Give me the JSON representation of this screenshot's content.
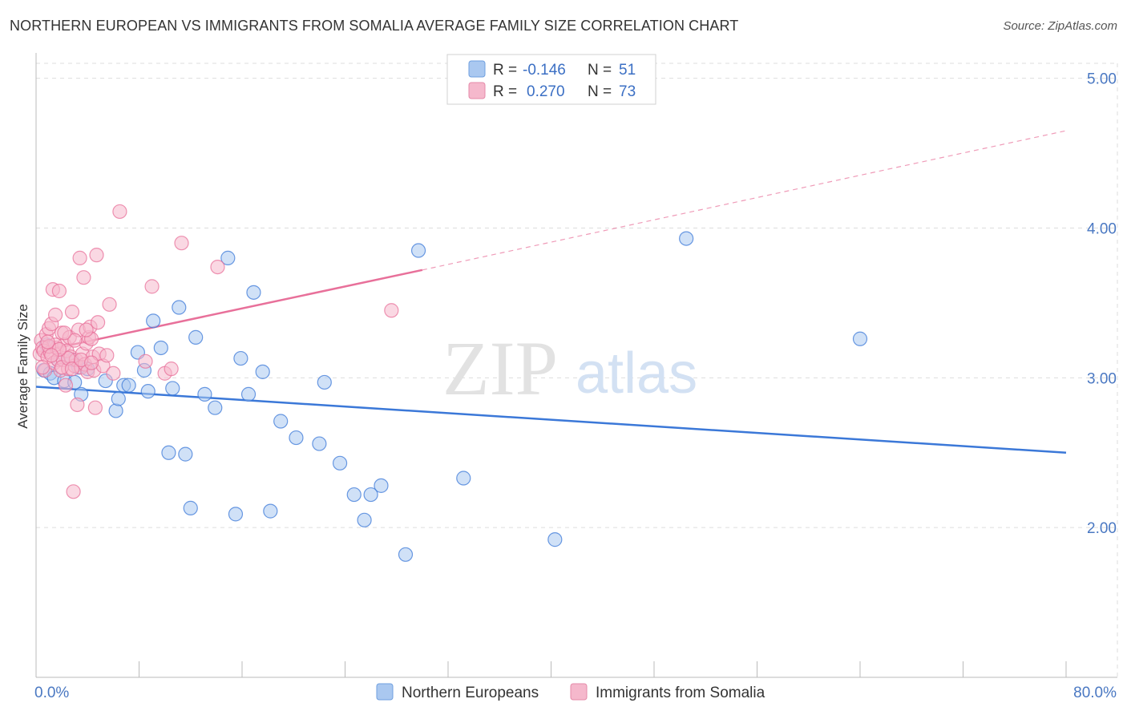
{
  "title": "NORTHERN EUROPEAN VS IMMIGRANTS FROM SOMALIA AVERAGE FAMILY SIZE CORRELATION CHART",
  "source": "Source: ZipAtlas.com",
  "colors": {
    "blue": "#3b78d8",
    "blue_fill": "#aac8f0",
    "pink": "#e8709a",
    "pink_fill": "#f5b8cc",
    "grid": "#dddddd",
    "axis_label": "#4a78c2"
  },
  "legend_top": {
    "rows": [
      {
        "r_label": "R =",
        "r_value": "-0.146",
        "n_label": "N =",
        "n_value": "51"
      },
      {
        "r_label": "R =",
        "r_value": "0.270",
        "n_label": "N =",
        "n_value": "73"
      }
    ]
  },
  "legend_bottom": {
    "items": [
      "Northern Europeans",
      "Immigrants from Somalia"
    ]
  },
  "watermark": {
    "zip": "ZIP",
    "atlas": "atlas"
  },
  "chart_data": {
    "type": "scatter",
    "title": "NORTHERN EUROPEAN VS IMMIGRANTS FROM SOMALIA AVERAGE FAMILY SIZE CORRELATION CHART",
    "xlabel": "",
    "ylabel": "Average Family Size",
    "xlim": [
      0,
      80
    ],
    "ylim": [
      1.0,
      5.1
    ],
    "x_tick_labels": [
      "0.0%",
      "80.0%"
    ],
    "y_ticks": [
      2.0,
      3.0,
      4.0,
      5.0
    ],
    "y_tick_labels": [
      "2.00",
      "3.00",
      "4.00",
      "5.00"
    ],
    "grid": true,
    "series": [
      {
        "name": "Northern Europeans",
        "color": "#3b78d8",
        "R": -0.146,
        "N": 51,
        "trend": {
          "x": [
            0,
            80
          ],
          "y": [
            2.94,
            2.5
          ]
        },
        "points": [
          [
            0.6,
            3.05
          ],
          [
            0.8,
            3.22
          ],
          [
            1.1,
            3.03
          ],
          [
            1.4,
            3.0
          ],
          [
            2.2,
            2.98
          ],
          [
            2.8,
            3.12
          ],
          [
            3.3,
            3.07
          ],
          [
            3.5,
            2.89
          ],
          [
            4.0,
            3.06
          ],
          [
            5.4,
            2.98
          ],
          [
            6.2,
            2.78
          ],
          [
            6.4,
            2.86
          ],
          [
            6.8,
            2.95
          ],
          [
            7.2,
            2.95
          ],
          [
            7.9,
            3.17
          ],
          [
            8.4,
            3.05
          ],
          [
            8.7,
            2.91
          ],
          [
            9.1,
            3.38
          ],
          [
            9.7,
            3.2
          ],
          [
            10.3,
            2.5
          ],
          [
            10.6,
            2.93
          ],
          [
            11.1,
            3.47
          ],
          [
            11.6,
            2.49
          ],
          [
            12.0,
            2.13
          ],
          [
            12.4,
            3.27
          ],
          [
            13.1,
            2.89
          ],
          [
            13.9,
            2.8
          ],
          [
            14.9,
            3.8
          ],
          [
            15.5,
            2.09
          ],
          [
            15.9,
            3.13
          ],
          [
            16.5,
            2.89
          ],
          [
            16.9,
            3.57
          ],
          [
            17.6,
            3.04
          ],
          [
            18.2,
            2.11
          ],
          [
            19.0,
            2.71
          ],
          [
            20.2,
            2.6
          ],
          [
            22.0,
            2.56
          ],
          [
            22.4,
            2.97
          ],
          [
            23.6,
            2.43
          ],
          [
            24.7,
            2.22
          ],
          [
            26.0,
            2.22
          ],
          [
            26.8,
            2.28
          ],
          [
            28.7,
            1.82
          ],
          [
            29.7,
            3.85
          ],
          [
            33.2,
            2.33
          ],
          [
            40.3,
            1.92
          ],
          [
            50.5,
            3.93
          ],
          [
            64.0,
            3.26
          ],
          [
            25.5,
            2.05
          ],
          [
            3.0,
            2.97
          ],
          [
            1.7,
            3.12
          ]
        ]
      },
      {
        "name": "Immigrants from Somalia",
        "color": "#e8709a",
        "R": 0.27,
        "N": 73,
        "trend": {
          "x": [
            0,
            30
          ],
          "y": [
            3.17,
            3.72
          ]
        },
        "trend_extension": {
          "x": [
            30,
            80
          ],
          "y": [
            3.72,
            4.65
          ]
        },
        "points": [
          [
            0.3,
            3.16
          ],
          [
            0.4,
            3.25
          ],
          [
            0.5,
            3.2
          ],
          [
            0.6,
            3.18
          ],
          [
            0.7,
            3.05
          ],
          [
            0.8,
            3.29
          ],
          [
            0.9,
            3.14
          ],
          [
            1.0,
            3.33
          ],
          [
            1.1,
            3.17
          ],
          [
            1.2,
            3.36
          ],
          [
            1.3,
            3.59
          ],
          [
            1.4,
            3.1
          ],
          [
            1.5,
            3.42
          ],
          [
            1.6,
            3.2
          ],
          [
            1.7,
            3.12
          ],
          [
            1.8,
            3.58
          ],
          [
            1.9,
            3.05
          ],
          [
            2.0,
            3.3
          ],
          [
            2.1,
            3.12
          ],
          [
            2.2,
            3.22
          ],
          [
            2.3,
            2.95
          ],
          [
            2.4,
            3.18
          ],
          [
            2.5,
            3.06
          ],
          [
            2.6,
            3.27
          ],
          [
            2.7,
            3.14
          ],
          [
            2.8,
            3.44
          ],
          [
            2.9,
            2.24
          ],
          [
            3.0,
            3.08
          ],
          [
            3.1,
            3.12
          ],
          [
            3.2,
            2.82
          ],
          [
            3.3,
            3.32
          ],
          [
            3.4,
            3.8
          ],
          [
            3.5,
            3.07
          ],
          [
            3.6,
            3.16
          ],
          [
            3.7,
            3.67
          ],
          [
            3.8,
            3.09
          ],
          [
            3.9,
            3.23
          ],
          [
            4.0,
            3.04
          ],
          [
            4.1,
            3.27
          ],
          [
            4.2,
            3.34
          ],
          [
            4.3,
            3.26
          ],
          [
            4.4,
            3.14
          ],
          [
            4.5,
            3.05
          ],
          [
            4.6,
            2.8
          ],
          [
            4.7,
            3.82
          ],
          [
            4.8,
            3.37
          ],
          [
            4.9,
            3.16
          ],
          [
            5.2,
            3.08
          ],
          [
            5.5,
            3.15
          ],
          [
            5.7,
            3.49
          ],
          [
            6.0,
            3.03
          ],
          [
            6.5,
            4.11
          ],
          [
            8.5,
            3.11
          ],
          [
            9.0,
            3.61
          ],
          [
            10.0,
            3.03
          ],
          [
            10.5,
            3.06
          ],
          [
            11.3,
            3.9
          ],
          [
            14.1,
            3.74
          ],
          [
            27.6,
            3.45
          ],
          [
            1.5,
            3.22
          ],
          [
            2.0,
            3.07
          ],
          [
            2.5,
            3.13
          ],
          [
            3.0,
            3.25
          ],
          [
            0.5,
            3.07
          ],
          [
            1.0,
            3.21
          ],
          [
            1.8,
            3.19
          ],
          [
            2.8,
            3.06
          ],
          [
            3.5,
            3.12
          ],
          [
            4.3,
            3.1
          ],
          [
            1.2,
            3.15
          ],
          [
            2.2,
            3.3
          ],
          [
            0.9,
            3.24
          ],
          [
            3.9,
            3.32
          ]
        ]
      }
    ]
  }
}
